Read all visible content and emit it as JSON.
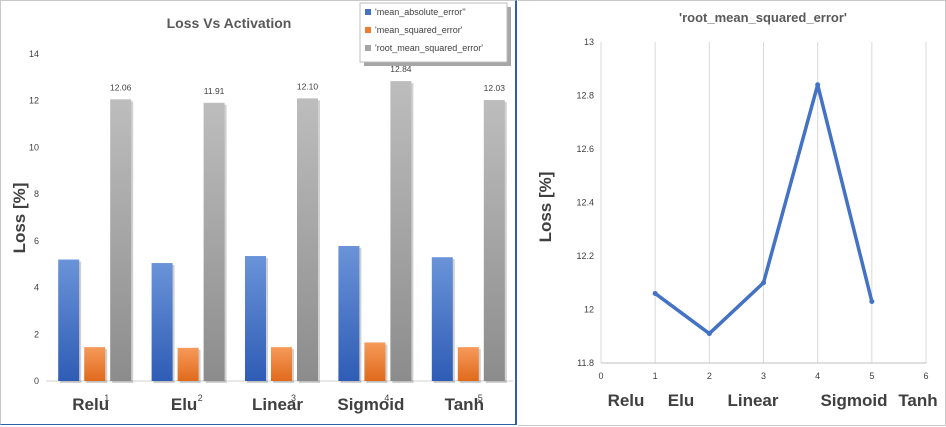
{
  "chart_data": [
    {
      "type": "bar",
      "title": "Loss Vs  Activation",
      "ylabel": "Loss [%]",
      "xlabel": "",
      "ylim": [
        0,
        14
      ],
      "y_ticks": [
        0,
        2,
        4,
        6,
        8,
        10,
        12,
        14
      ],
      "grid": false,
      "legend_position": "top-right",
      "categories": [
        "Relu",
        "Elu",
        "Linear",
        "Sigmoid",
        "Tanh"
      ],
      "category_numbers": [
        "1",
        "2",
        "3",
        "4",
        "5"
      ],
      "series": [
        {
          "name": "'mean_absolute_error''",
          "color": "#4472c4",
          "values": [
            5.2,
            5.05,
            5.35,
            5.78,
            5.3
          ],
          "data_labels": false
        },
        {
          "name": "'mean_squared_error'",
          "color": "#ed7d31",
          "values": [
            1.45,
            1.42,
            1.45,
            1.65,
            1.45
          ],
          "data_labels": false
        },
        {
          "name": "'root_mean_squared_error'",
          "color": "#a5a5a5",
          "values": [
            12.06,
            11.91,
            12.1,
            12.84,
            12.03
          ],
          "data_labels": true,
          "labels": [
            "12.06",
            "11.91",
            "12.10",
            "12.84",
            "12.03"
          ]
        }
      ]
    },
    {
      "type": "line",
      "title": "'root_mean_squared_error'",
      "ylabel": "Loss [%]",
      "xlabel": "",
      "x_ticks": [
        "0",
        "1",
        "2",
        "3",
        "4",
        "5",
        "6"
      ],
      "xlim": [
        0,
        6
      ],
      "y_ticks": [
        "11.8",
        "12",
        "12.2",
        "12.4",
        "12.6",
        "12.8",
        "13"
      ],
      "ylim": [
        11.8,
        13
      ],
      "grid": true,
      "categories": [
        "Relu",
        "Elu",
        "Linear",
        "Sigmoid",
        "Tanh"
      ],
      "series": [
        {
          "name": "",
          "color": "#4472c4",
          "x": [
            1,
            2,
            3,
            4,
            5
          ],
          "values": [
            12.06,
            11.91,
            12.1,
            12.84,
            12.03
          ]
        }
      ]
    }
  ]
}
